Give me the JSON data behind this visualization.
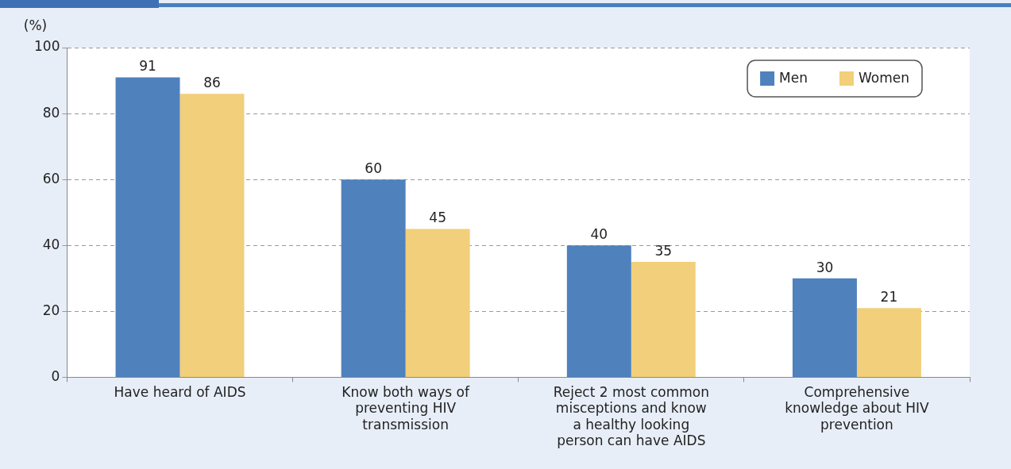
{
  "chart_data": {
    "type": "bar",
    "ylabel": "(%)",
    "categories": [
      "Have heard of AIDS",
      "Know both ways of preventing HIV transmission",
      "Reject 2 most common misceptions and know a healthy looking person can have AIDS",
      "Comprehensive knowledge about HIV prevention"
    ],
    "series": [
      {
        "name": "Men",
        "color": "#4f81bd",
        "values": [
          91,
          60,
          40,
          30
        ]
      },
      {
        "name": "Women",
        "color": "#f2cf7a",
        "values": [
          86,
          45,
          35,
          21
        ]
      }
    ],
    "ylim": [
      0,
      100
    ],
    "yticks": [
      0,
      20,
      40,
      60,
      80,
      100
    ],
    "grid": "y",
    "legend": "top right",
    "data_labels": true
  }
}
